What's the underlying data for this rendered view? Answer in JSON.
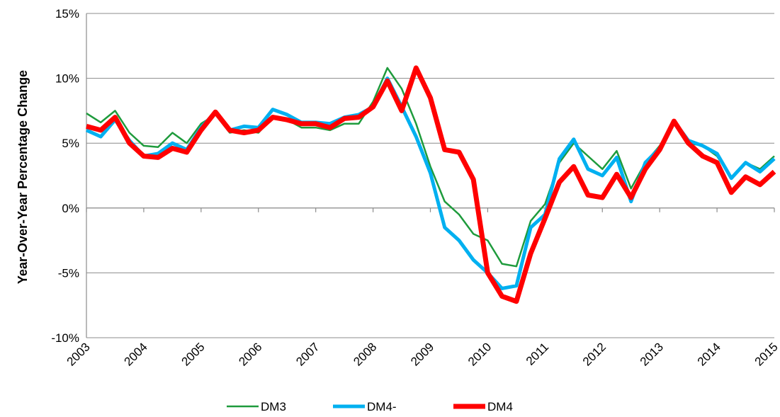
{
  "chart_data": {
    "type": "line",
    "y_label": "Year-Over-Year Percentage Change",
    "x": [
      2003,
      2003.25,
      2003.5,
      2003.75,
      2004,
      2004.25,
      2004.5,
      2004.75,
      2005,
      2005.25,
      2005.5,
      2005.75,
      2006,
      2006.25,
      2006.5,
      2006.75,
      2007,
      2007.25,
      2007.5,
      2007.75,
      2008,
      2008.25,
      2008.5,
      2008.75,
      2009,
      2009.25,
      2009.5,
      2009.75,
      2010,
      2010.25,
      2010.5,
      2010.75,
      2011,
      2011.25,
      2011.5,
      2011.75,
      2012,
      2012.25,
      2012.5,
      2012.75,
      2013,
      2013.25,
      2013.5,
      2013.75,
      2014,
      2014.25,
      2014.5,
      2014.75,
      2015
    ],
    "series": [
      {
        "name": "DM3",
        "color": "#1e9b3c",
        "values": [
          7.3,
          6.6,
          7.5,
          5.8,
          4.8,
          4.7,
          5.8,
          5.0,
          6.5,
          7.2,
          5.8,
          6.0,
          5.8,
          7.0,
          6.8,
          6.2,
          6.2,
          6.0,
          6.5,
          6.5,
          8.2,
          10.8,
          9.2,
          6.5,
          3.2,
          0.5,
          -0.5,
          -2.0,
          -2.5,
          -4.3,
          -4.5,
          -1.0,
          0.3,
          3.5,
          5.0,
          4.0,
          3.0,
          4.4,
          1.5,
          3.5,
          4.8,
          6.7,
          5.0,
          4.8,
          4.0,
          2.3,
          3.5,
          3.0,
          4.0
        ]
      },
      {
        "name": "DM4-",
        "color": "#00b0f0",
        "values": [
          6.0,
          5.5,
          6.8,
          5.2,
          4.0,
          4.2,
          5.0,
          4.5,
          6.2,
          7.4,
          6.0,
          6.3,
          6.2,
          7.6,
          7.2,
          6.6,
          6.6,
          6.5,
          7.0,
          7.2,
          7.8,
          10.0,
          7.8,
          5.5,
          2.7,
          -1.5,
          -2.5,
          -4.0,
          -5.0,
          -6.2,
          -6.0,
          -1.5,
          -0.5,
          3.8,
          5.3,
          3.0,
          2.5,
          3.9,
          0.5,
          3.5,
          4.6,
          6.7,
          5.2,
          4.8,
          4.2,
          2.3,
          3.5,
          2.8,
          3.8
        ]
      },
      {
        "name": "DM4",
        "color": "#ff0000",
        "values": [
          6.3,
          6.0,
          7.0,
          5.0,
          4.0,
          3.9,
          4.6,
          4.3,
          6.0,
          7.4,
          6.0,
          5.8,
          6.0,
          7.0,
          6.8,
          6.5,
          6.5,
          6.2,
          6.9,
          7.0,
          7.8,
          9.8,
          7.5,
          10.8,
          8.5,
          4.5,
          4.3,
          2.2,
          -5.0,
          -6.8,
          -7.2,
          -3.5,
          -0.8,
          2.0,
          3.2,
          1.0,
          0.8,
          2.6,
          0.8,
          3.0,
          4.5,
          6.7,
          5.0,
          4.0,
          3.5,
          1.2,
          2.4,
          1.8,
          2.8
        ]
      }
    ],
    "xlim": [
      2003,
      2015
    ],
    "xticks": [
      2003,
      2004,
      2005,
      2006,
      2007,
      2008,
      2009,
      2010,
      2011,
      2012,
      2013,
      2014,
      2015
    ],
    "ylim": [
      -10,
      15
    ],
    "yticks": [
      {
        "value": -10,
        "label": "-10%"
      },
      {
        "value": -5,
        "label": "-5%"
      },
      {
        "value": 0,
        "label": "0%"
      },
      {
        "value": 5,
        "label": "5%"
      },
      {
        "value": 10,
        "label": "10%"
      },
      {
        "value": 15,
        "label": "15%"
      }
    ],
    "grid": true,
    "legend": "bottom"
  }
}
